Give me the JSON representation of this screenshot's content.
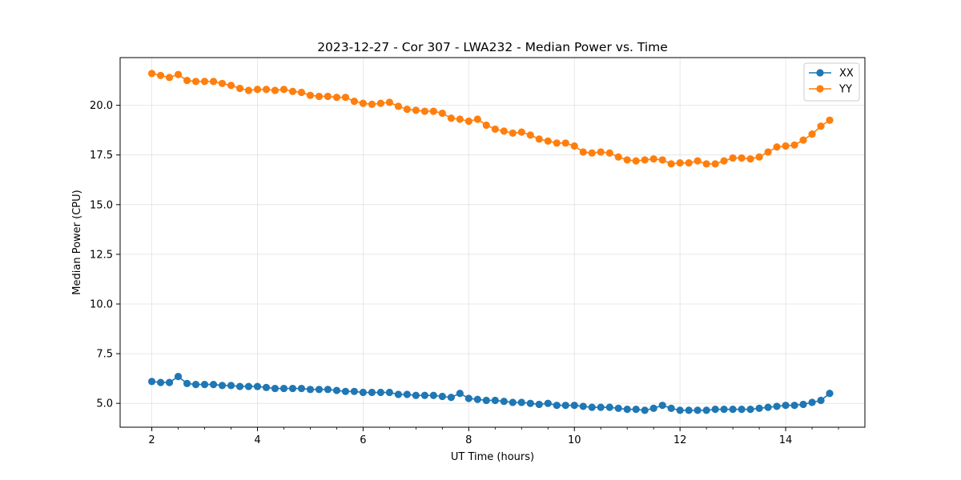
{
  "chart_data": {
    "type": "line",
    "title": "2023-12-27 - Cor 307 - LWA232 - Median Power vs. Time",
    "xlabel": "UT Time (hours)",
    "ylabel": "Median Power (CPU)",
    "xlim": [
      1.4,
      15.5
    ],
    "ylim": [
      3.8,
      22.4
    ],
    "xticks": [
      2,
      4,
      6,
      8,
      10,
      12,
      14
    ],
    "xtick_labels": [
      "2",
      "4",
      "6",
      "8",
      "10",
      "12",
      "14"
    ],
    "xticks_minor": [
      2.5,
      3,
      3.5,
      4.5,
      5,
      5.5,
      6.5,
      7,
      7.5,
      8.5,
      9,
      9.5,
      10.5,
      11,
      11.5,
      12.5,
      13,
      13.5,
      14.5,
      15
    ],
    "yticks": [
      5.0,
      7.5,
      10.0,
      12.5,
      15.0,
      17.5,
      20.0
    ],
    "ytick_labels": [
      "5.0",
      "7.5",
      "10.0",
      "12.5",
      "15.0",
      "17.5",
      "20.0"
    ],
    "grid": true,
    "legend_position": "top-right",
    "x": [
      2.0,
      2.167,
      2.333,
      2.5,
      2.667,
      2.833,
      3.0,
      3.167,
      3.333,
      3.5,
      3.667,
      3.833,
      4.0,
      4.167,
      4.333,
      4.5,
      4.667,
      4.833,
      5.0,
      5.167,
      5.333,
      5.5,
      5.667,
      5.833,
      6.0,
      6.167,
      6.333,
      6.5,
      6.667,
      6.833,
      7.0,
      7.167,
      7.333,
      7.5,
      7.667,
      7.833,
      8.0,
      8.167,
      8.333,
      8.5,
      8.667,
      8.833,
      9.0,
      9.167,
      9.333,
      9.5,
      9.667,
      9.833,
      10.0,
      10.167,
      10.333,
      10.5,
      10.667,
      10.833,
      11.0,
      11.167,
      11.333,
      11.5,
      11.667,
      11.833,
      12.0,
      12.167,
      12.333,
      12.5,
      12.667,
      12.833,
      13.0,
      13.167,
      13.333,
      13.5,
      13.667,
      13.833,
      14.0,
      14.167,
      14.333,
      14.5,
      14.667,
      14.833
    ],
    "series": [
      {
        "name": "XX",
        "color": "#1f77b4",
        "values": [
          6.1,
          6.05,
          6.05,
          6.35,
          6.0,
          5.95,
          5.95,
          5.95,
          5.9,
          5.9,
          5.85,
          5.85,
          5.85,
          5.8,
          5.75,
          5.75,
          5.75,
          5.75,
          5.7,
          5.7,
          5.7,
          5.65,
          5.6,
          5.6,
          5.55,
          5.55,
          5.55,
          5.55,
          5.45,
          5.45,
          5.4,
          5.4,
          5.4,
          5.35,
          5.3,
          5.5,
          5.25,
          5.2,
          5.15,
          5.15,
          5.1,
          5.05,
          5.05,
          5.0,
          4.95,
          5.0,
          4.9,
          4.9,
          4.9,
          4.85,
          4.8,
          4.8,
          4.8,
          4.75,
          4.7,
          4.7,
          4.65,
          4.75,
          4.9,
          4.75,
          4.65,
          4.65,
          4.65,
          4.65,
          4.7,
          4.7,
          4.7,
          4.7,
          4.7,
          4.75,
          4.8,
          4.85,
          4.9,
          4.9,
          4.95,
          5.05,
          5.15,
          5.5
        ]
      },
      {
        "name": "YY",
        "color": "#ff7f0e",
        "values": [
          21.6,
          21.5,
          21.4,
          21.55,
          21.25,
          21.2,
          21.2,
          21.2,
          21.1,
          21.0,
          20.85,
          20.75,
          20.8,
          20.8,
          20.75,
          20.8,
          20.7,
          20.65,
          20.5,
          20.45,
          20.45,
          20.4,
          20.4,
          20.2,
          20.1,
          20.05,
          20.1,
          20.15,
          19.95,
          19.8,
          19.75,
          19.7,
          19.7,
          19.6,
          19.35,
          19.3,
          19.2,
          19.3,
          19.0,
          18.8,
          18.7,
          18.6,
          18.65,
          18.5,
          18.3,
          18.2,
          18.1,
          18.1,
          17.95,
          17.65,
          17.6,
          17.65,
          17.6,
          17.4,
          17.25,
          17.2,
          17.25,
          17.3,
          17.25,
          17.05,
          17.1,
          17.1,
          17.2,
          17.05,
          17.05,
          17.2,
          17.35,
          17.35,
          17.3,
          17.4,
          17.65,
          17.9,
          17.95,
          18.0,
          18.25,
          18.55,
          18.95,
          19.25
        ]
      }
    ]
  }
}
